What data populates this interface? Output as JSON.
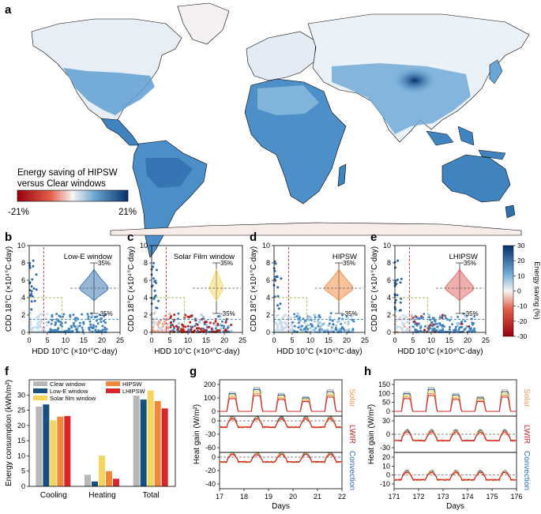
{
  "panel_labels": {
    "a": "a",
    "b": "b",
    "c": "c",
    "d": "d",
    "e": "e",
    "f": "f",
    "g": "g",
    "h": "h"
  },
  "colors": {
    "saving_high": "#08306b",
    "saving_mid": "#4a90c8",
    "saving_light": "#d9e8f3",
    "loss_high": "#99000d",
    "loss_mid": "#e0604a",
    "neutral": "#f7f4f2",
    "clear": "#b7b7b7",
    "lowe": "#15507f",
    "solarfilm": "#f6d55c",
    "hipsw": "#f0883a",
    "lhipsw": "#d9262a",
    "solar_label": "#f09a5a",
    "lwir_label": "#c62828",
    "conv_label": "#2e6db3"
  },
  "map": {
    "legend_title_line1": "Energy saving of HIPSW",
    "legend_title_line2": "versus Clear windows",
    "legend_min": "-21%",
    "legend_max": "21%"
  },
  "scatter_common": {
    "ylabel": "CDD 18°C (×10⁴°C·day)",
    "xlabel": "HDD 10°C (×10⁴°C·day)",
    "xticks": [
      "0",
      "5",
      "10",
      "15",
      "20",
      "25"
    ],
    "yticks": [
      "0",
      "2",
      "4",
      "6",
      "8",
      "10"
    ],
    "violin_top": "35%",
    "violin_bottom": "-35%"
  },
  "colorbar": {
    "label": "Energy saving (%)",
    "ticks": [
      "30",
      "20",
      "10",
      "0",
      "-10",
      "-20",
      "-30"
    ]
  },
  "chart_data": [
    {
      "panel": "b",
      "type": "scatter",
      "title": "Low-E window",
      "xlim": [
        0,
        25
      ],
      "ylim": [
        0,
        10
      ]
    },
    {
      "panel": "c",
      "type": "scatter",
      "title": "Solar Film window",
      "xlim": [
        0,
        25
      ],
      "ylim": [
        0,
        10
      ]
    },
    {
      "panel": "d",
      "type": "scatter",
      "title": "HIPSW",
      "xlim": [
        0,
        25
      ],
      "ylim": [
        0,
        10
      ]
    },
    {
      "panel": "e",
      "type": "scatter",
      "title": "LHIPSW",
      "xlim": [
        0,
        25
      ],
      "ylim": [
        0,
        10
      ]
    },
    {
      "panel": "f",
      "type": "bar",
      "ylabel": "Energy consumption (kWh/m²)",
      "categories": [
        "Cooling",
        "Heating",
        "Total"
      ],
      "ylim": [
        0,
        35
      ],
      "yticks": [
        "0",
        "5",
        "10",
        "15",
        "20",
        "25",
        "30"
      ],
      "series": [
        {
          "name": "Clear window",
          "values": [
            26.2,
            3.8,
            29.8
          ]
        },
        {
          "name": "Low-E window",
          "values": [
            26.9,
            1.6,
            28.5
          ]
        },
        {
          "name": "Solar film window",
          "values": [
            21.7,
            10.1,
            31.5
          ]
        },
        {
          "name": "HIPSW",
          "values": [
            22.9,
            5.0,
            28.0
          ]
        },
        {
          "name": "LHIPSW",
          "values": [
            23.1,
            2.5,
            25.6
          ]
        }
      ]
    },
    {
      "panel": "g",
      "type": "line",
      "xlabel": "Days",
      "ylabel": "Heat gain (W/m²)",
      "xticks": [
        "17",
        "18",
        "19",
        "20",
        "21",
        "22"
      ],
      "subplots": [
        {
          "label": "Solar",
          "yticks": [
            "0",
            "100",
            "200"
          ]
        },
        {
          "label": "LWIR",
          "yticks": [
            "0",
            "-30",
            "-60"
          ]
        },
        {
          "label": "Convection",
          "yticks": [
            "0",
            "-20",
            "-40"
          ]
        }
      ]
    },
    {
      "panel": "h",
      "type": "line",
      "xlabel": "Days",
      "ylabel": "Heat gain (W/m²)",
      "xticks": [
        "171",
        "172",
        "173",
        "174",
        "175",
        "176"
      ],
      "subplots": [
        {
          "label": "Solar",
          "yticks": [
            "0",
            "50",
            "100",
            "150"
          ]
        },
        {
          "label": "LWIR",
          "yticks": [
            "-30",
            "0",
            "30"
          ]
        },
        {
          "label": "Convection",
          "yticks": [
            "-10",
            "0",
            "10",
            "20"
          ]
        }
      ]
    }
  ]
}
